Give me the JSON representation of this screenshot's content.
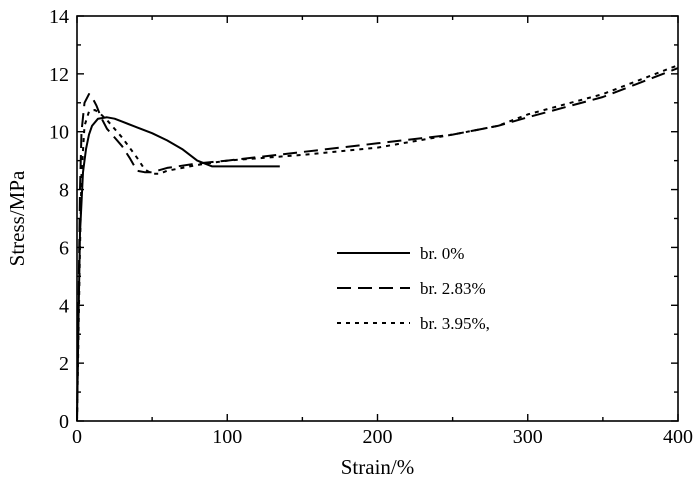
{
  "chart_data": {
    "type": "line",
    "xlabel": "Strain/%",
    "ylabel": "Stress/MPa",
    "xlim": [
      0,
      400
    ],
    "ylim": [
      0,
      14
    ],
    "xticks": [
      0,
      100,
      200,
      300,
      400
    ],
    "yticks": [
      0,
      2,
      4,
      6,
      8,
      10,
      12,
      14
    ],
    "grid": false,
    "legend_position": "center-right",
    "series": [
      {
        "name": "br.  0%",
        "style": "solid",
        "x": [
          0,
          1,
          2,
          4,
          6,
          8,
          10,
          14,
          20,
          25,
          30,
          40,
          50,
          60,
          70,
          80,
          90,
          100,
          110,
          120,
          135
        ],
        "y": [
          0,
          3.5,
          6.5,
          8.6,
          9.4,
          9.9,
          10.2,
          10.45,
          10.5,
          10.45,
          10.35,
          10.15,
          9.95,
          9.7,
          9.4,
          9.0,
          8.8,
          8.8,
          8.8,
          8.8,
          8.8
        ]
      },
      {
        "name": "br. 2.83%",
        "style": "dashed",
        "x": [
          0,
          1,
          2,
          3,
          5,
          8,
          10,
          13,
          16,
          20,
          25,
          30,
          35,
          40,
          45,
          50,
          60,
          80,
          100,
          150,
          200,
          250,
          280,
          300,
          350,
          400
        ],
        "y": [
          0,
          4,
          8,
          10,
          11.0,
          11.3,
          11.2,
          10.9,
          10.5,
          10.1,
          9.8,
          9.5,
          9.1,
          8.65,
          8.6,
          8.6,
          8.75,
          8.9,
          9.0,
          9.3,
          9.6,
          9.9,
          10.2,
          10.5,
          11.2,
          12.2
        ]
      },
      {
        "name": "br. 3.95%,",
        "style": "dotted",
        "x": [
          0,
          1,
          2,
          3,
          5,
          8,
          12,
          16,
          20,
          30,
          40,
          45,
          50,
          55,
          60,
          80,
          100,
          150,
          200,
          250,
          280,
          300,
          350,
          400
        ],
        "y": [
          0,
          3,
          6,
          8.5,
          10.2,
          10.7,
          10.75,
          10.6,
          10.4,
          9.8,
          9.1,
          8.7,
          8.55,
          8.55,
          8.65,
          8.85,
          9.0,
          9.2,
          9.45,
          9.9,
          10.2,
          10.6,
          11.3,
          12.3
        ]
      }
    ]
  }
}
